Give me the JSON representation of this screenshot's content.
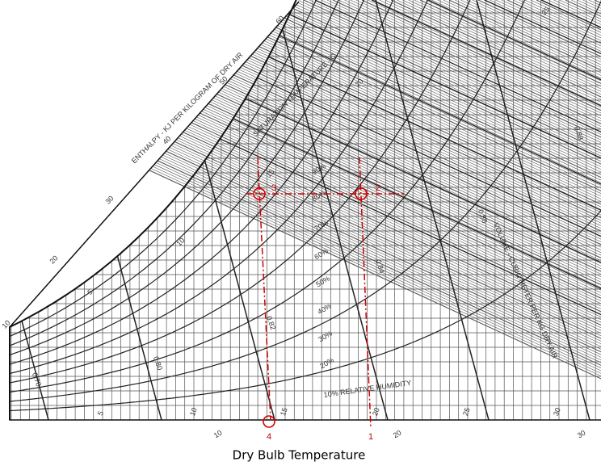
{
  "axis_label": "Dry Bulb Temperature",
  "enthalpy": {
    "title": "ENTHALPY - KJ PER KILOGRAM OF DRY AIR",
    "ticks": [
      "10",
      "20",
      "30",
      "40",
      "50",
      "60"
    ]
  },
  "saturation": {
    "title": "SATURATION TEMPERATURE - C",
    "ticks": [
      "5",
      "10",
      "15",
      "20",
      "25"
    ]
  },
  "humidity": {
    "ticks": [
      "10% RELATIVE HUMIDITY",
      "20%",
      "30%",
      "40%",
      "50%",
      "60%",
      "70%",
      "80%",
      "90%"
    ]
  },
  "volume": {
    "title": "VOLUME - CUBIC METER PER KG DRY AIR",
    "ticks": [
      "0.78",
      "0.80",
      "0.82",
      "0.84",
      "0.86",
      "0.88"
    ]
  },
  "dry_bulb": {
    "ticks": [
      "5",
      "10",
      "15",
      "20",
      "25",
      "30"
    ],
    "bottom_ticks": [
      "10",
      "20",
      "30"
    ]
  },
  "points": [
    "1",
    "2",
    "3",
    "4"
  ]
}
